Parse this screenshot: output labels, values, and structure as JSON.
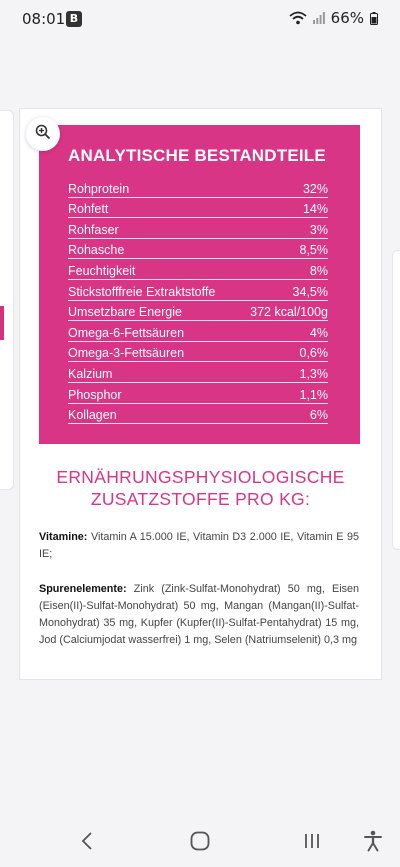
{
  "status": {
    "time": "08:01",
    "badge": "B",
    "battery_text": "66%"
  },
  "nutrition": {
    "title": "ANALYTISCHE BESTANDTEILE",
    "rows": [
      {
        "label": "Rohprotein",
        "value": "32%"
      },
      {
        "label": "Rohfett",
        "value": "14%"
      },
      {
        "label": "Rohfaser",
        "value": "3%"
      },
      {
        "label": "Rohasche",
        "value": "8,5%"
      },
      {
        "label": "Feuchtigkeit",
        "value": "8%"
      },
      {
        "label": "Stickstofffreie Extraktstoffe",
        "value": "34,5%"
      },
      {
        "label": "Umsetzbare Energie",
        "value": "372 kcal/100g"
      },
      {
        "label": "Omega-6-Fettsäuren",
        "value": "4%"
      },
      {
        "label": "Omega-3-Fettsäuren",
        "value": "0,6%"
      },
      {
        "label": "Kalzium",
        "value": "1,3%"
      },
      {
        "label": "Phosphor",
        "value": "1,1%"
      },
      {
        "label": "Kollagen",
        "value": "6%"
      }
    ]
  },
  "additives": {
    "title_line1": "ERNÄHRUNGSPHYSIOLOGISCHE",
    "title_line2": "ZUSATZSTOFFE PRO KG:",
    "vitamins_label": "Vitamine:",
    "vitamins_text": "Vitamin A 15.000 IE, Vitamin D3 2.000 IE, Vitamin E 95 IE;",
    "trace_label": "Spurenelemente:",
    "trace_text": "Zink (Zink-Sulfat-Monohydrat) 50 mg, Eisen (Eisen(II)-Sulfat-Monohydrat) 50 mg, Mangan (Mangan(II)-Sulfat-Monohydrat) 35 mg, Kupfer (Kupfer(II)-Sulfat-Pentahydrat) 15 mg, Jod (Calciumjodat wasserfrei) 1 mg, Selen (Natriumselenit) 0,3 mg"
  },
  "colors": {
    "accent": "#d93586",
    "background": "#f4f4f6"
  },
  "icons": {
    "zoom": "zoom-in-icon",
    "nav_back": "back-icon",
    "nav_home": "home-icon",
    "nav_recents": "recents-icon",
    "nav_accessibility": "accessibility-icon"
  }
}
